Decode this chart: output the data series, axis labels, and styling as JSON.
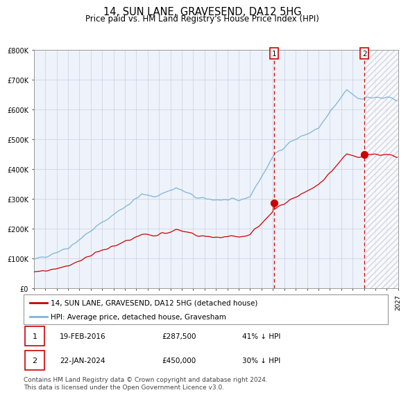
{
  "title": "14, SUN LANE, GRAVESEND, DA12 5HG",
  "subtitle": "Price paid vs. HM Land Registry's House Price Index (HPI)",
  "hpi_label": "HPI: Average price, detached house, Gravesham",
  "price_label": "14, SUN LANE, GRAVESEND, DA12 5HG (detached house)",
  "annotation1": {
    "label": "1",
    "date": "19-FEB-2016",
    "price": 287500,
    "pct": "41% ↓ HPI",
    "year": 2016.12
  },
  "annotation2": {
    "label": "2",
    "date": "22-JAN-2024",
    "price": 450000,
    "pct": "30% ↓ HPI",
    "year": 2024.05
  },
  "ylabel_ticks": [
    "£0",
    "£100K",
    "£200K",
    "£300K",
    "£400K",
    "£500K",
    "£600K",
    "£700K",
    "£800K"
  ],
  "ylabel_values": [
    0,
    100000,
    200000,
    300000,
    400000,
    500000,
    600000,
    700000,
    800000
  ],
  "xmin": 1995.0,
  "xmax": 2027.0,
  "ymin": 0,
  "ymax": 800000,
  "hpi_color": "#7ab4d8",
  "price_color": "#cc0000",
  "bg_color": "#eef2fa",
  "grid_color": "#c8cfe0",
  "dashed_line_color": "#cc0000",
  "annotation_box_color": "#cc0000",
  "footnote": "Contains HM Land Registry data © Crown copyright and database right 2024.\nThis data is licensed under the Open Government Licence v3.0.",
  "title_fontsize": 10.5,
  "subtitle_fontsize": 8.5,
  "tick_fontsize": 7,
  "legend_fontsize": 7.5,
  "footnote_fontsize": 6.5
}
